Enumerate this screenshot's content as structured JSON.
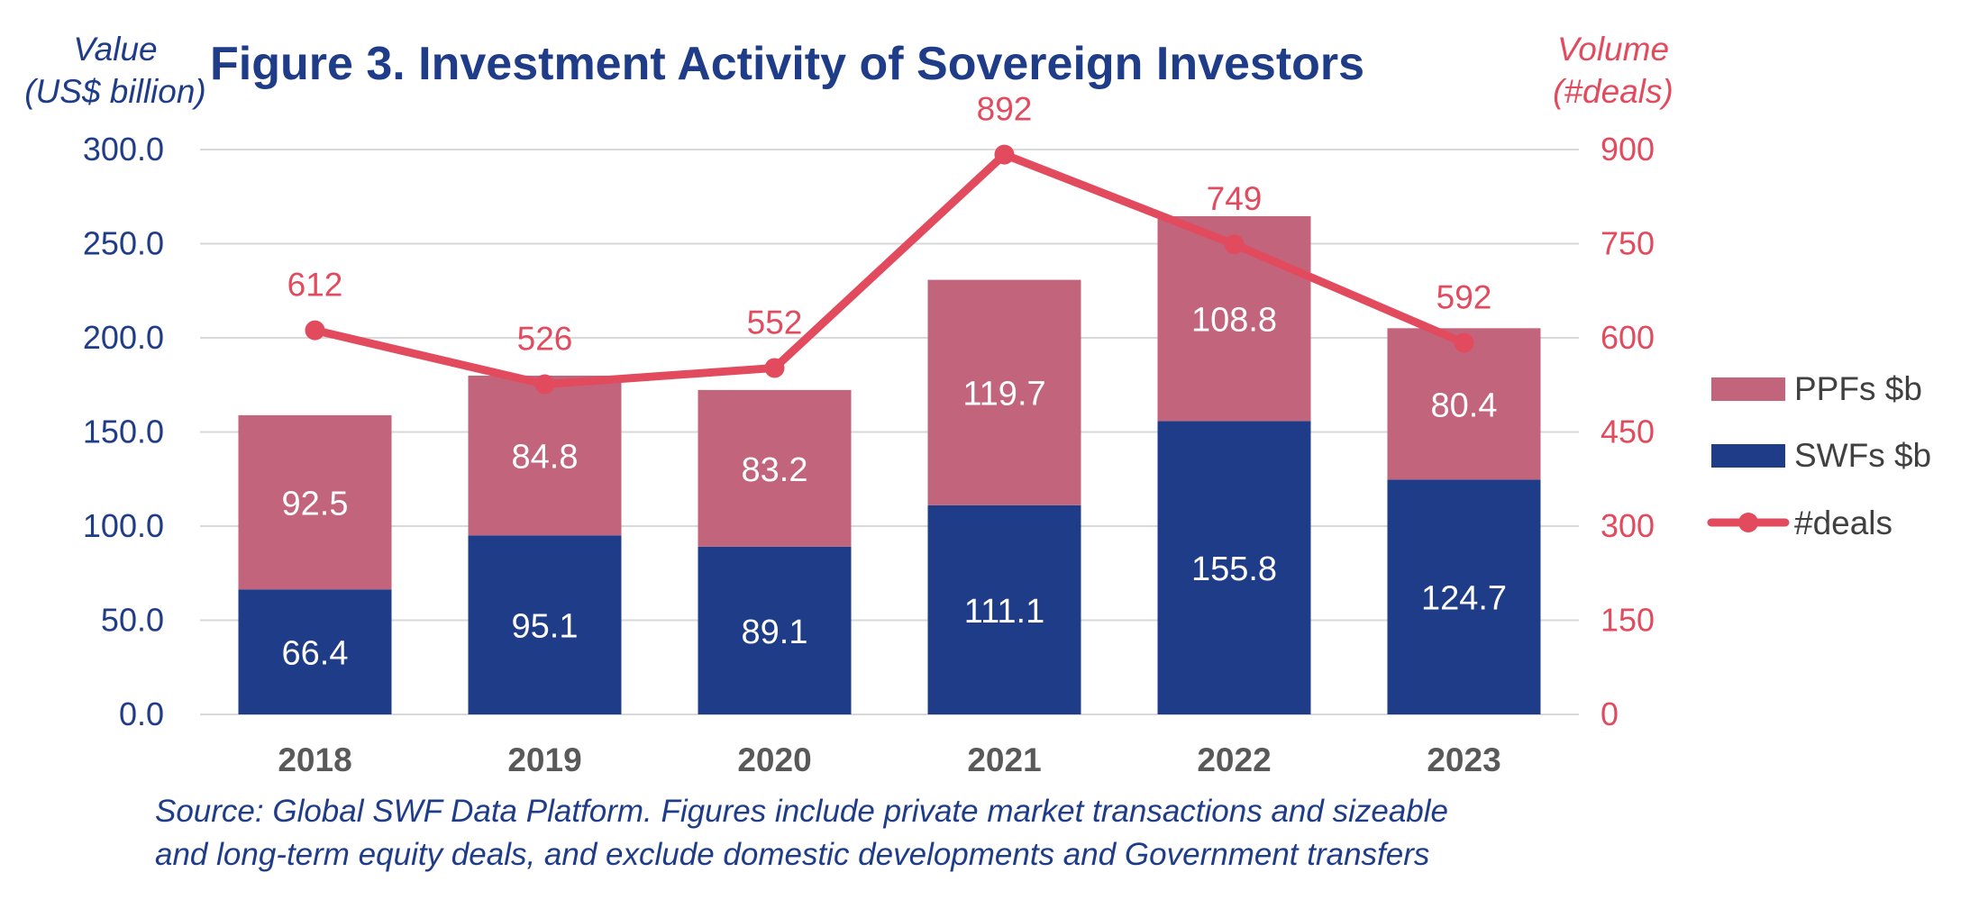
{
  "colors": {
    "swf": "#1f3c88",
    "ppf": "#c2647c",
    "deals": "#e24b5e",
    "title": "#1f3c88",
    "grid": "#d9d9d9",
    "axis_left": "#1f3c88",
    "axis_right": "#e24b5e"
  },
  "chart_data": {
    "type": "bar",
    "stacked": true,
    "title": "Figure 3. Investment Activity of Sovereign Investors",
    "ylabel_left": [
      "Value",
      "(US$ billion)"
    ],
    "ylabel_right": [
      "Volume",
      "(#deals)"
    ],
    "categories": [
      "2018",
      "2019",
      "2020",
      "2021",
      "2022",
      "2023"
    ],
    "ylim_left": [
      0,
      300
    ],
    "yticks_left": [
      "0.0",
      "50.0",
      "100.0",
      "150.0",
      "200.0",
      "250.0",
      "300.0"
    ],
    "ylim_right": [
      0,
      900
    ],
    "yticks_right": [
      "0",
      "150",
      "300",
      "450",
      "600",
      "750",
      "900"
    ],
    "series": [
      {
        "name": "SWFs $b",
        "type": "bar",
        "axis": "left",
        "values": [
          66.4,
          95.1,
          89.1,
          111.1,
          155.8,
          124.7
        ]
      },
      {
        "name": "PPFs $b",
        "type": "bar",
        "axis": "left",
        "values": [
          92.5,
          84.8,
          83.2,
          119.7,
          108.8,
          80.4
        ]
      },
      {
        "name": "#deals",
        "type": "line",
        "axis": "right",
        "values": [
          612,
          526,
          552,
          892,
          749,
          592
        ]
      }
    ],
    "legend": {
      "position": "right",
      "entries": [
        "PPFs $b",
        "SWFs $b",
        "#deals"
      ]
    },
    "grid": true,
    "source": [
      "Source: Global SWF Data Platform. Figures include private market transactions and sizeable",
      "and long-term equity deals, and exclude domestic developments and Government transfers"
    ]
  }
}
